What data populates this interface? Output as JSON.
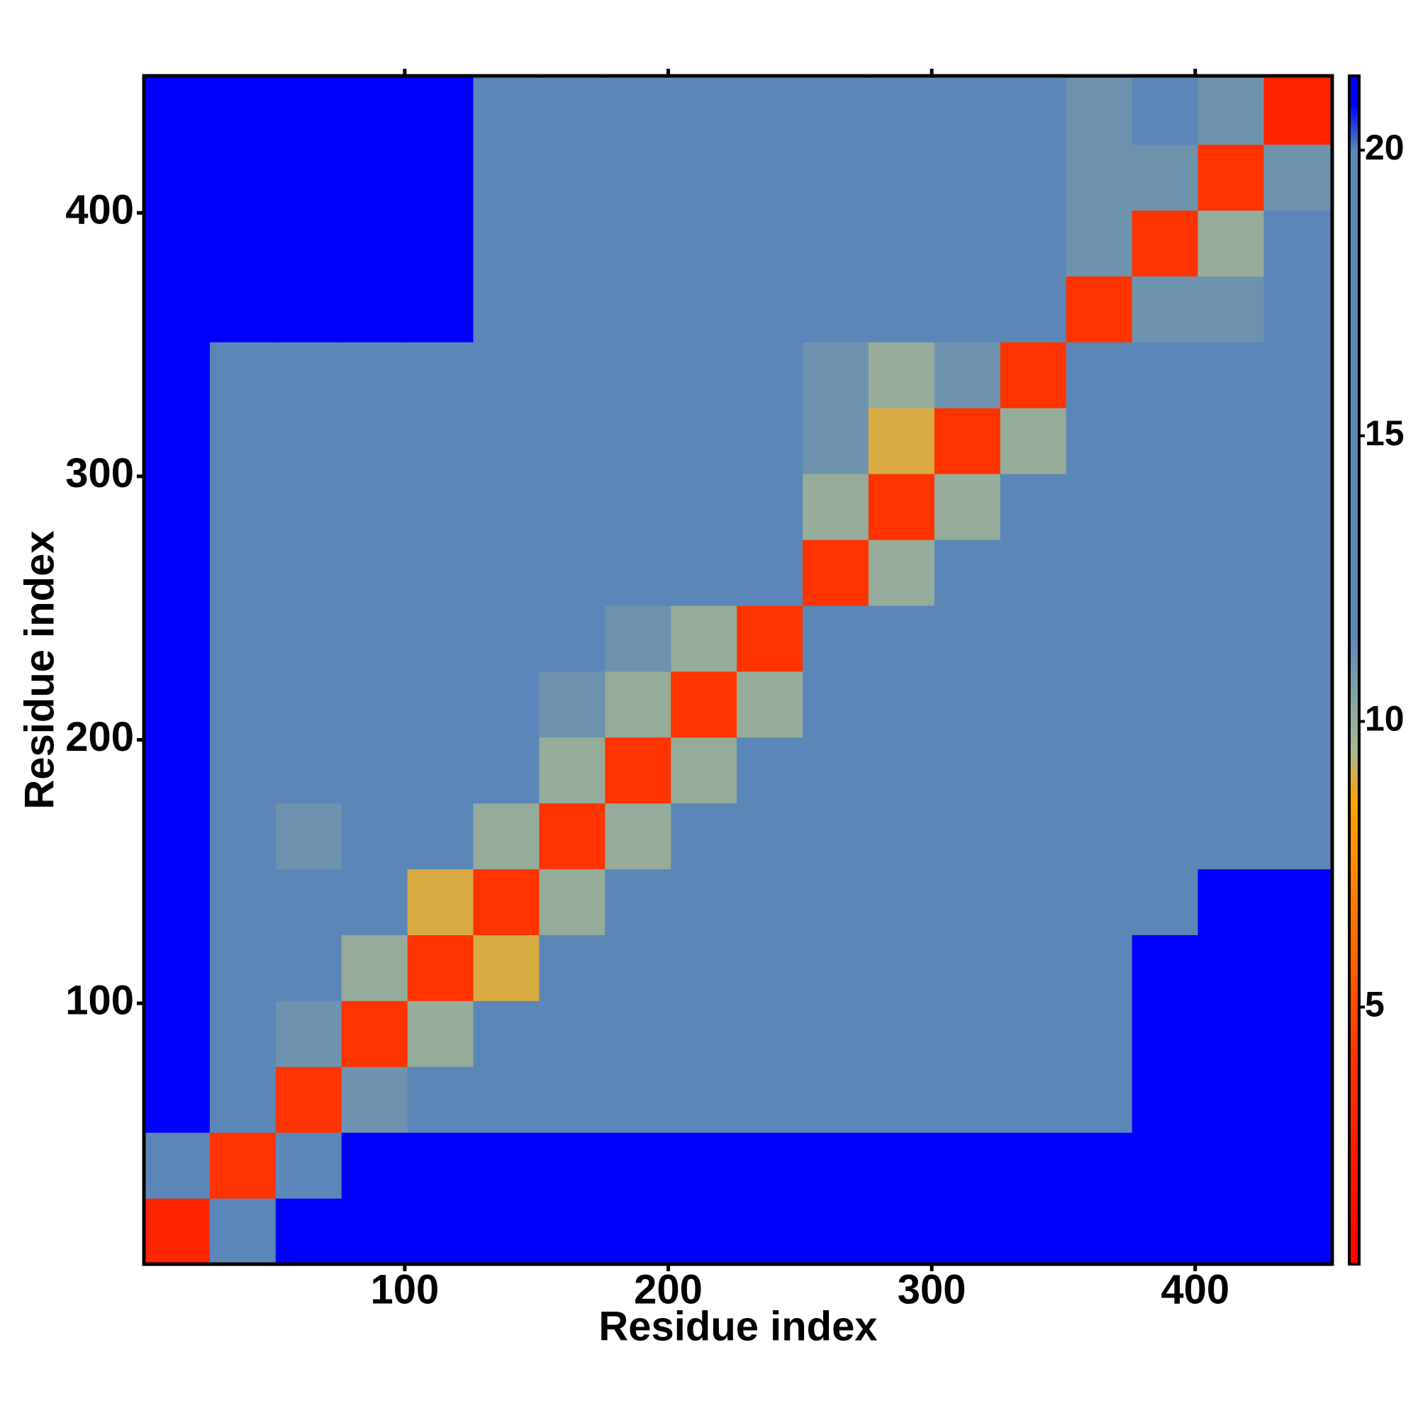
{
  "chart_data": {
    "type": "heatmap",
    "xlabel": "Residue index",
    "ylabel": "Residue index",
    "xlim": [
      1,
      452
    ],
    "ylim": [
      1,
      452
    ],
    "xticks": [
      100,
      200,
      300,
      400
    ],
    "yticks": [
      100,
      200,
      300,
      400
    ],
    "zlim": [
      0.5,
      21.3
    ],
    "zticks": [
      5,
      10,
      15,
      20
    ],
    "x_bins": [
      1,
      26,
      51,
      76,
      101,
      126,
      151,
      176,
      201,
      226,
      251,
      276,
      301,
      326,
      351,
      376,
      401,
      426,
      452
    ],
    "y_bins": [
      1,
      26,
      51,
      76,
      101,
      126,
      151,
      176,
      201,
      226,
      251,
      276,
      301,
      326,
      351,
      376,
      401,
      426,
      452
    ],
    "colorscale": [
      {
        "value": 0.5,
        "color": "#ff0000"
      },
      {
        "value": 4,
        "color": "#ff3300"
      },
      {
        "value": 7,
        "color": "#ff8000"
      },
      {
        "value": 8.6,
        "color": "#ffa000"
      },
      {
        "value": 9.5,
        "color": "#a8b890"
      },
      {
        "value": 11.5,
        "color": "#5b87b8"
      },
      {
        "value": 20,
        "color": "#5b87b8"
      },
      {
        "value": 20.8,
        "color": "#0000ff"
      }
    ],
    "z": [
      [
        3,
        12,
        21,
        21,
        21,
        21,
        21,
        21,
        21,
        21,
        21,
        21,
        21,
        21,
        21,
        21,
        21,
        21
      ],
      [
        12,
        4,
        14,
        21,
        21,
        21,
        21,
        21,
        21,
        21,
        21,
        21,
        21,
        21,
        21,
        21,
        21,
        21
      ],
      [
        21,
        12,
        4,
        11,
        14,
        15,
        15,
        16,
        17,
        16,
        17,
        17,
        17,
        18,
        19,
        21,
        21,
        21
      ],
      [
        21,
        16,
        11,
        4,
        10,
        14,
        16,
        17,
        17,
        16,
        17,
        18,
        19,
        18,
        20,
        21,
        21,
        21
      ],
      [
        21,
        16,
        12,
        10,
        4,
        9,
        15,
        16,
        17,
        15,
        16,
        18,
        18,
        18,
        19,
        21,
        21,
        21
      ],
      [
        21,
        16,
        12,
        14,
        9,
        4,
        10,
        14,
        15,
        14,
        16,
        17,
        17,
        17,
        18,
        20,
        21,
        21
      ],
      [
        21,
        16,
        11,
        15,
        13,
        10,
        4,
        10,
        14,
        14,
        16,
        17,
        17,
        18,
        19,
        19,
        19,
        19
      ],
      [
        21,
        15,
        12,
        15,
        14,
        12,
        10,
        4,
        10,
        14,
        17,
        17,
        18,
        18,
        19,
        19,
        19,
        20
      ],
      [
        21,
        16,
        16,
        16,
        15,
        13,
        11,
        10,
        4,
        10,
        16,
        17,
        17,
        17,
        19,
        19,
        19,
        19
      ],
      [
        21,
        15,
        13,
        15,
        14,
        13,
        12,
        11,
        10,
        4,
        16,
        17,
        18,
        18,
        19,
        19,
        20,
        19
      ],
      [
        21,
        16,
        16,
        17,
        17,
        16,
        16,
        17,
        17,
        15,
        4,
        10,
        13,
        13,
        18,
        19,
        19,
        18
      ],
      [
        21,
        17,
        16,
        17,
        17,
        16,
        17,
        17,
        17,
        16,
        10,
        4,
        10,
        12,
        17,
        17,
        18,
        17
      ],
      [
        21,
        17,
        16,
        17,
        17,
        16,
        17,
        18,
        17,
        17,
        11,
        9,
        4,
        10,
        16,
        17,
        17,
        17
      ],
      [
        21,
        17,
        16,
        17,
        17,
        16,
        17,
        17,
        18,
        17,
        11,
        10,
        11,
        4,
        15,
        17,
        17,
        17
      ],
      [
        21,
        21,
        21,
        21,
        21,
        15,
        17,
        18,
        18,
        18,
        17,
        17,
        17,
        16,
        4,
        11,
        11,
        13
      ],
      [
        21,
        21,
        21,
        21,
        21,
        17,
        18,
        18,
        18,
        18,
        18,
        18,
        17,
        15,
        11,
        4,
        10,
        12
      ],
      [
        21,
        21,
        21,
        21,
        21,
        17,
        17,
        18,
        18,
        18,
        18,
        18,
        17,
        15,
        11,
        11,
        4,
        11
      ],
      [
        21,
        21,
        21,
        21,
        21,
        20,
        14,
        18,
        18,
        18,
        18,
        18,
        18,
        18,
        11,
        12,
        11,
        3
      ]
    ]
  }
}
